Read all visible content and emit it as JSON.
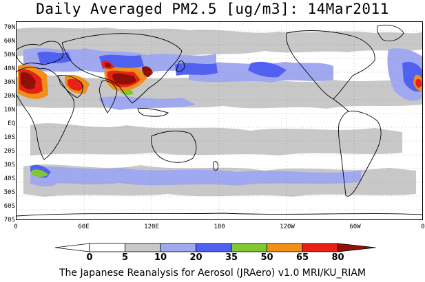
{
  "title": "Daily Averaged PM2.5 [ug/m3]: 14Mar2011",
  "footer": "The Japanese Reanalysis for Aerosol (JRAero) v1.0 MRI/KU_RIAM",
  "latitude_labels": [
    "70N",
    "60N",
    "50N",
    "40N",
    "30N",
    "20N",
    "10N",
    "EQ",
    "10S",
    "20S",
    "30S",
    "40S",
    "50S",
    "60S",
    "70S"
  ],
  "longitude_labels": [
    "0",
    "60E",
    "120E",
    "180",
    "120W",
    "60W",
    "0"
  ],
  "colorbar": {
    "levels": [
      "0",
      "5",
      "10",
      "20",
      "35",
      "50",
      "65",
      "80"
    ],
    "colors": [
      "#ffffff",
      "#c8c8c8",
      "#a0a8f0",
      "#5060f0",
      "#80c830",
      "#f09018",
      "#e82018",
      "#901008"
    ]
  },
  "legend_colors": {
    "lt5": "#ffffff",
    "5to10": "#c8c8c8",
    "10to20": "#a0a8f0",
    "20to35": "#5060f0",
    "35to50": "#80c830",
    "50to65": "#f09018",
    "65to80": "#e82018",
    "gt80": "#901008"
  }
}
